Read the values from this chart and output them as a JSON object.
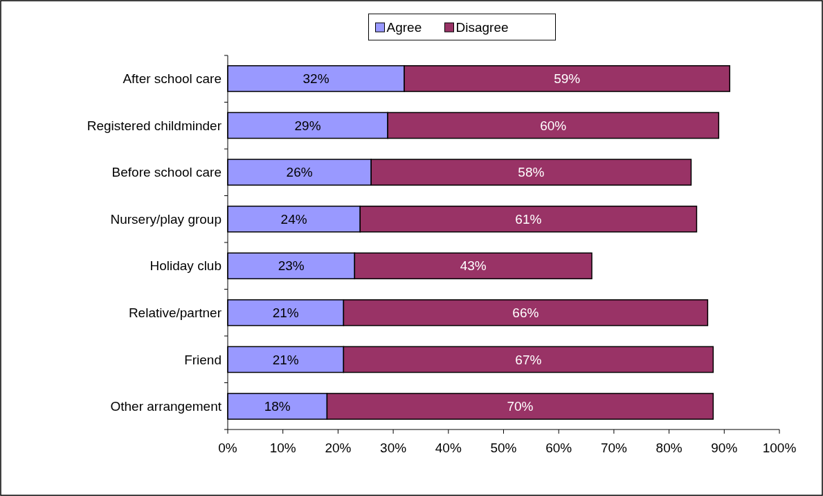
{
  "chart_data": {
    "type": "bar",
    "orientation": "horizontal",
    "stacked": true,
    "categories": [
      "After school care",
      "Registered childminder",
      "Before school care",
      "Nursery/play group",
      "Holiday club",
      "Relative/partner",
      "Friend",
      "Other arrangement"
    ],
    "series": [
      {
        "name": "Agree",
        "color": "#9999ff",
        "values": [
          32,
          29,
          26,
          24,
          23,
          21,
          21,
          18
        ],
        "value_labels": [
          "32%",
          "29%",
          "26%",
          "24%",
          "23%",
          "21%",
          "21%",
          "18%"
        ]
      },
      {
        "name": "Disagree",
        "color": "#993366",
        "values": [
          59,
          60,
          58,
          61,
          43,
          66,
          67,
          70
        ],
        "value_labels": [
          "59%",
          "60%",
          "58%",
          "61%",
          "43%",
          "66%",
          "67%",
          "70%"
        ]
      }
    ],
    "xlim": [
      0,
      100
    ],
    "xticks": [
      {
        "value": 0,
        "label": "0%"
      },
      {
        "value": 10,
        "label": "10%"
      },
      {
        "value": 20,
        "label": "20%"
      },
      {
        "value": 30,
        "label": "30%"
      },
      {
        "value": 40,
        "label": "40%"
      },
      {
        "value": 50,
        "label": "50%"
      },
      {
        "value": 60,
        "label": "60%"
      },
      {
        "value": 70,
        "label": "70%"
      },
      {
        "value": 80,
        "label": "80%"
      },
      {
        "value": 90,
        "label": "90%"
      },
      {
        "value": 100,
        "label": "100%"
      }
    ],
    "legend": "top",
    "grid": false
  }
}
